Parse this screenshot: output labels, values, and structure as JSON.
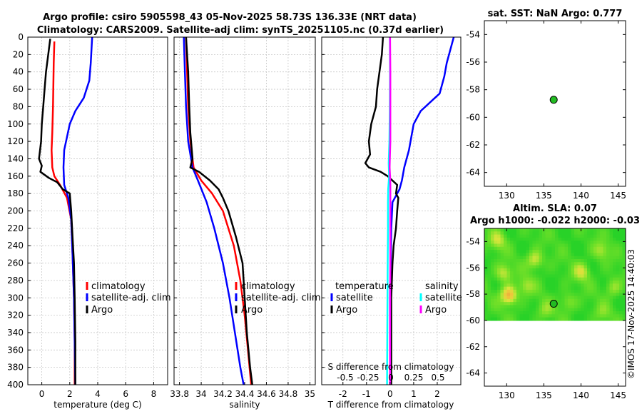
{
  "header": {
    "title_line1": "Argo profile: csiro 5905598_43 05-Nov-2025 58.73S 136.33E (NRT data)",
    "title_line2": "Climatology: CARS2009. Satellite-adj clim: synTS_20251105.nc (0.37d earlier)"
  },
  "credit": "©IMOS 17-Nov-2025 14:40:03",
  "colors": {
    "climatology": "#ff0000",
    "satellite": "#0000ff",
    "argo": "#000000",
    "cyan": "#00ffff",
    "magenta": "#ff00ff",
    "marker": "#22bb22"
  },
  "chart_data": [
    {
      "id": "temperature",
      "type": "line",
      "xlabel": "temperature (deg C)",
      "ylim": [
        400,
        0
      ],
      "xlim": [
        -1,
        9
      ],
      "xticks": [
        0,
        2,
        4,
        6,
        8
      ],
      "yticks": [
        0,
        20,
        40,
        60,
        80,
        100,
        120,
        140,
        160,
        180,
        200,
        220,
        240,
        260,
        280,
        300,
        320,
        340,
        360,
        380,
        400
      ],
      "legend": {
        "position": "lower-right",
        "entries": [
          "climatology",
          "satellite-adj. clim",
          "Argo"
        ]
      },
      "series": [
        {
          "name": "climatology",
          "color": "#ff0000",
          "points": [
            [
              0.9,
              5
            ],
            [
              0.85,
              30
            ],
            [
              0.8,
              80
            ],
            [
              0.75,
              110
            ],
            [
              0.7,
              130
            ],
            [
              0.75,
              150
            ],
            [
              0.9,
              160
            ],
            [
              1.3,
              170
            ],
            [
              1.8,
              185
            ],
            [
              2.1,
              210
            ],
            [
              2.2,
              250
            ],
            [
              2.3,
              300
            ],
            [
              2.35,
              350
            ],
            [
              2.35,
              400
            ]
          ]
        },
        {
          "name": "satellite-adj. clim",
          "color": "#0000ff",
          "points": [
            [
              3.6,
              0
            ],
            [
              3.5,
              30
            ],
            [
              3.4,
              50
            ],
            [
              3.0,
              70
            ],
            [
              2.4,
              85
            ],
            [
              2.0,
              100
            ],
            [
              1.8,
              115
            ],
            [
              1.6,
              130
            ],
            [
              1.55,
              150
            ],
            [
              1.6,
              170
            ],
            [
              1.9,
              185
            ],
            [
              2.1,
              210
            ],
            [
              2.2,
              250
            ],
            [
              2.3,
              300
            ],
            [
              2.35,
              350
            ],
            [
              2.4,
              400
            ]
          ]
        },
        {
          "name": "Argo",
          "color": "#000000",
          "points": [
            [
              0.6,
              2
            ],
            [
              0.5,
              15
            ],
            [
              0.3,
              40
            ],
            [
              0.2,
              60
            ],
            [
              0.1,
              80
            ],
            [
              0.0,
              100
            ],
            [
              -0.05,
              120
            ],
            [
              -0.2,
              140
            ],
            [
              0.0,
              148
            ],
            [
              -0.1,
              155
            ],
            [
              0.5,
              162
            ],
            [
              1.1,
              167
            ],
            [
              1.5,
              175
            ],
            [
              2.0,
              180
            ],
            [
              2.1,
              200
            ],
            [
              2.2,
              230
            ],
            [
              2.3,
              260
            ],
            [
              2.35,
              300
            ],
            [
              2.4,
              350
            ],
            [
              2.4,
              400
            ]
          ]
        }
      ]
    },
    {
      "id": "salinity",
      "type": "line",
      "xlabel": "salinity",
      "ylim": [
        400,
        0
      ],
      "xlim": [
        33.75,
        35.05
      ],
      "xticks": [
        33.8,
        34,
        34.2,
        34.4,
        34.6,
        34.8,
        35
      ],
      "xticklabels": [
        "33.8",
        "34",
        "34.2",
        "34.4",
        "34.6",
        "34.8",
        "35"
      ],
      "legend": {
        "position": "lower-right",
        "entries": [
          "climatology",
          "satellite-adj. clim",
          "Argo"
        ]
      },
      "series": [
        {
          "name": "climatology",
          "color": "#ff0000",
          "points": [
            [
              33.86,
              0
            ],
            [
              33.87,
              40
            ],
            [
              33.88,
              80
            ],
            [
              33.9,
              120
            ],
            [
              33.93,
              150
            ],
            [
              34.0,
              165
            ],
            [
              34.1,
              180
            ],
            [
              34.2,
              200
            ],
            [
              34.3,
              240
            ],
            [
              34.36,
              280
            ],
            [
              34.4,
              320
            ],
            [
              34.43,
              360
            ],
            [
              34.46,
              400
            ]
          ]
        },
        {
          "name": "satellite-adj. clim",
          "color": "#0000ff",
          "points": [
            [
              33.84,
              0
            ],
            [
              33.85,
              40
            ],
            [
              33.86,
              80
            ],
            [
              33.88,
              120
            ],
            [
              33.92,
              150
            ],
            [
              33.97,
              165
            ],
            [
              34.05,
              190
            ],
            [
              34.12,
              220
            ],
            [
              34.2,
              260
            ],
            [
              34.26,
              300
            ],
            [
              34.31,
              340
            ],
            [
              34.36,
              380
            ],
            [
              34.39,
              400
            ]
          ]
        },
        {
          "name": "Argo",
          "color": "#000000",
          "points": [
            [
              33.86,
              0
            ],
            [
              33.88,
              40
            ],
            [
              33.89,
              80
            ],
            [
              33.9,
              110
            ],
            [
              33.92,
              140
            ],
            [
              33.9,
              150
            ],
            [
              33.98,
              155
            ],
            [
              34.08,
              165
            ],
            [
              34.16,
              175
            ],
            [
              34.2,
              185
            ],
            [
              34.25,
              200
            ],
            [
              34.32,
              230
            ],
            [
              34.38,
              260
            ],
            [
              34.4,
              300
            ],
            [
              34.42,
              340
            ],
            [
              34.45,
              380
            ],
            [
              34.47,
              400
            ]
          ]
        }
      ]
    },
    {
      "id": "difference",
      "type": "line",
      "xlabel": "T difference from climatology",
      "xlabel_top": "S difference from climatology",
      "ylim": [
        400,
        0
      ],
      "xlim": [
        -2.9,
        3.0
      ],
      "xticks": [
        -2,
        -1,
        0,
        1,
        2
      ],
      "xticklabels": [
        "-2",
        "-1",
        "0",
        "1",
        "2"
      ],
      "top_axis_labels": [
        "-0.5",
        "-0.25",
        "0",
        "0.25",
        "0.5"
      ],
      "legend_left": {
        "title": "temperature",
        "entries": [
          "satellite",
          "Argo"
        ]
      },
      "legend_right": {
        "title": "salinity",
        "entries": [
          "satellite",
          "Argo"
        ]
      },
      "series": [
        {
          "name": "temperature satellite",
          "color": "#0000ff",
          "points": [
            [
              2.7,
              0
            ],
            [
              2.6,
              10
            ],
            [
              2.5,
              20
            ],
            [
              2.4,
              30
            ],
            [
              2.3,
              45
            ],
            [
              2.1,
              65
            ],
            [
              1.7,
              75
            ],
            [
              1.3,
              85
            ],
            [
              1.0,
              100
            ],
            [
              0.9,
              115
            ],
            [
              0.8,
              130
            ],
            [
              0.6,
              150
            ],
            [
              0.5,
              165
            ],
            [
              0.4,
              175
            ],
            [
              0.3,
              180
            ],
            [
              0.1,
              190
            ],
            [
              0.05,
              220
            ],
            [
              0.0,
              300
            ],
            [
              0.0,
              400
            ]
          ]
        },
        {
          "name": "temperature Argo",
          "color": "#000000",
          "points": [
            [
              -0.3,
              0
            ],
            [
              -0.35,
              20
            ],
            [
              -0.45,
              40
            ],
            [
              -0.55,
              60
            ],
            [
              -0.6,
              80
            ],
            [
              -0.8,
              100
            ],
            [
              -0.9,
              120
            ],
            [
              -0.85,
              135
            ],
            [
              -1.05,
              145
            ],
            [
              -0.9,
              150
            ],
            [
              -0.4,
              155
            ],
            [
              -0.1,
              160
            ],
            [
              0.1,
              165
            ],
            [
              0.3,
              170
            ],
            [
              0.25,
              180
            ],
            [
              0.35,
              185
            ],
            [
              0.3,
              200
            ],
            [
              0.25,
              220
            ],
            [
              0.15,
              240
            ],
            [
              0.1,
              260
            ],
            [
              0.05,
              300
            ],
            [
              0.05,
              400
            ]
          ]
        },
        {
          "name": "salinity satellite",
          "color": "#00ffff",
          "points": [
            [
              -0.01,
              0
            ],
            [
              0.0,
              40
            ],
            [
              -0.01,
              80
            ],
            [
              -0.03,
              120
            ],
            [
              -0.06,
              145
            ],
            [
              -0.04,
              160
            ],
            [
              -0.08,
              175
            ],
            [
              -0.09,
              190
            ],
            [
              -0.09,
              220
            ],
            [
              -0.1,
              260
            ],
            [
              -0.11,
              300
            ],
            [
              -0.12,
              350
            ],
            [
              -0.13,
              400
            ]
          ]
        },
        {
          "name": "salinity Argo",
          "color": "#ff00ff",
          "points": [
            [
              0.0,
              0
            ],
            [
              0.01,
              40
            ],
            [
              0.01,
              80
            ],
            [
              0.01,
              120
            ],
            [
              -0.01,
              140
            ],
            [
              -0.02,
              150
            ],
            [
              0.0,
              160
            ],
            [
              0.01,
              170
            ],
            [
              0.01,
              200
            ],
            [
              0.01,
              260
            ],
            [
              0.0,
              320
            ],
            [
              0.0,
              400
            ]
          ]
        }
      ]
    },
    {
      "id": "sst-map",
      "type": "scatter",
      "title": "sat. SST: NaN Argo: 0.777",
      "xlim": [
        127,
        146
      ],
      "ylim": [
        -65,
        -53
      ],
      "xticks": [
        130,
        135,
        140,
        145
      ],
      "yticks": [
        -54,
        -56,
        -58,
        -60,
        -62,
        -64
      ],
      "points": [
        {
          "lon": 136.33,
          "lat": -58.73
        }
      ]
    },
    {
      "id": "sla-map",
      "type": "heatmap",
      "title_line1": "Altim. SLA: 0.07",
      "title_line2": "Argo h1000: -0.022 h2000: -0.03",
      "xlim": [
        127,
        146
      ],
      "ylim": [
        -65,
        -53
      ],
      "data_lat_range": [
        -60,
        -53
      ],
      "xticks": [
        130,
        135,
        140,
        145
      ],
      "yticks": [
        -54,
        -56,
        -58,
        -60,
        -62,
        -64
      ],
      "points": [
        {
          "lon": 136.33,
          "lat": -58.73
        }
      ],
      "hotspots": [
        {
          "lon": 130.3,
          "lat": -58.1,
          "v": 1.0
        },
        {
          "lon": 128.8,
          "lat": -53.9,
          "v": 0.5
        },
        {
          "lon": 129.6,
          "lat": -56.4,
          "v": 0.55
        },
        {
          "lon": 133.8,
          "lat": -55.4,
          "v": 0.6
        },
        {
          "lon": 132.6,
          "lat": -57.4,
          "v": 0.4
        },
        {
          "lon": 140.1,
          "lat": -56.3,
          "v": 0.55
        },
        {
          "lon": 142.7,
          "lat": -54.7,
          "v": 0.4
        },
        {
          "lon": 138.3,
          "lat": -58.6,
          "v": 0.35
        },
        {
          "lon": 144.3,
          "lat": -57.5,
          "v": 0.4
        },
        {
          "lon": 135.2,
          "lat": -59.2,
          "v": 0.3
        },
        {
          "lon": 142.9,
          "lat": -59.4,
          "v": 0.25
        }
      ]
    }
  ]
}
